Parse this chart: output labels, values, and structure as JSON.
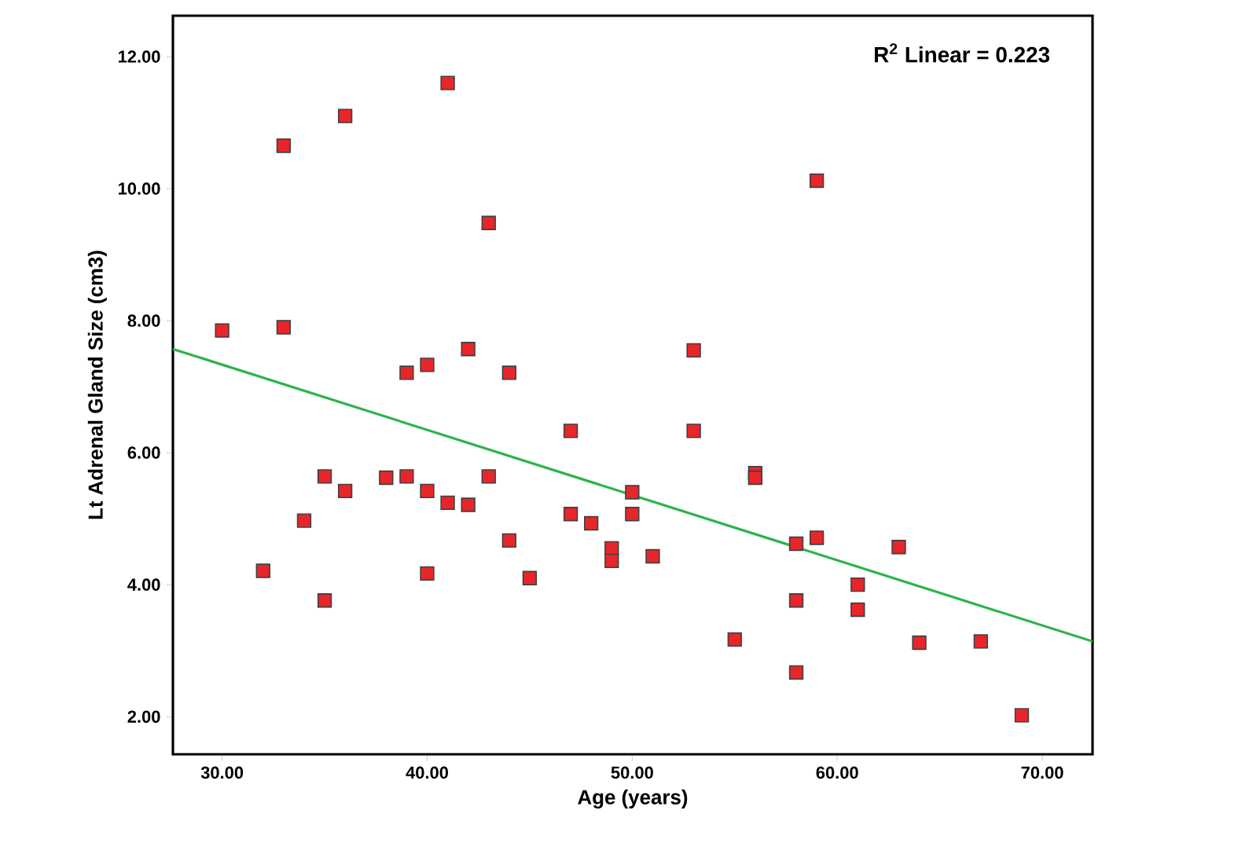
{
  "chart_data": {
    "type": "scatter",
    "xlabel": "Age (years)",
    "ylabel": "Lt Adrenal Gland Size (cm3)",
    "xlim": [
      27.6,
      72.45
    ],
    "ylim": [
      1.43,
      12.62
    ],
    "xticks": [
      {
        "value": 30,
        "label": "30.00"
      },
      {
        "value": 40,
        "label": "40.00"
      },
      {
        "value": 50,
        "label": "50.00"
      },
      {
        "value": 60,
        "label": "60.00"
      },
      {
        "value": 70,
        "label": "70.00"
      }
    ],
    "yticks": [
      {
        "value": 2,
        "label": "2.00"
      },
      {
        "value": 4,
        "label": "4.00"
      },
      {
        "value": 6,
        "label": "6.00"
      },
      {
        "value": 8,
        "label": "8.00"
      },
      {
        "value": 10,
        "label": "10.00"
      },
      {
        "value": 12,
        "label": "12.00"
      }
    ],
    "grid": false,
    "annotations": [
      "R$^{2}$ Linear = 0.223"
    ],
    "series": [
      {
        "marker": "square",
        "color": "#e8262a",
        "x": [
          30,
          32,
          33,
          33,
          34,
          35,
          35,
          36,
          36,
          38,
          39,
          39,
          40,
          40,
          40,
          41,
          41,
          42,
          42,
          43,
          43,
          44,
          44,
          45,
          47,
          47,
          48,
          49,
          49,
          50,
          50,
          51,
          53,
          53,
          55,
          56,
          56,
          58,
          58,
          58,
          59,
          59,
          61,
          61,
          63,
          64,
          67,
          69
        ],
        "values": [
          7.85,
          4.21,
          10.65,
          7.9,
          4.97,
          5.64,
          3.76,
          11.1,
          5.42,
          5.62,
          7.21,
          5.64,
          7.33,
          5.42,
          4.17,
          5.24,
          11.6,
          7.57,
          5.21,
          9.48,
          5.64,
          7.21,
          4.67,
          4.1,
          6.33,
          5.07,
          4.93,
          4.55,
          4.36,
          5.4,
          5.07,
          4.43,
          7.55,
          6.33,
          3.17,
          5.69,
          5.62,
          4.62,
          3.76,
          2.67,
          4.71,
          10.12,
          4.0,
          3.62,
          4.57,
          3.12,
          3.14,
          2.02
        ]
      },
      {
        "type": "line",
        "color": "#2db34a",
        "x": [
          27.6,
          72.45
        ],
        "values": [
          7.57,
          3.14
        ]
      }
    ]
  }
}
